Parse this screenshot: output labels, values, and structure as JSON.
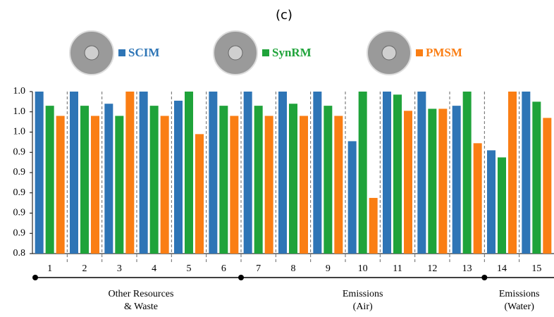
{
  "chart_data": {
    "type": "bar",
    "title": "(c)",
    "categories": [
      "1",
      "2",
      "3",
      "4",
      "5",
      "6",
      "7",
      "8",
      "9",
      "10",
      "11",
      "12",
      "13",
      "14",
      "15"
    ],
    "series": [
      {
        "name": "SCIM",
        "color": "#2e75b6",
        "values": [
          1.0,
          1.0,
          0.988,
          1.0,
          0.991,
          1.0,
          1.0,
          1.0,
          1.0,
          0.951,
          1.0,
          1.0,
          0.986,
          0.942,
          1.0
        ]
      },
      {
        "name": "SynRM",
        "color": "#1fa33a",
        "values": [
          0.986,
          0.986,
          0.976,
          0.986,
          1.0,
          0.986,
          0.986,
          0.988,
          0.986,
          1.0,
          0.997,
          0.983,
          1.0,
          0.935,
          0.99
        ]
      },
      {
        "name": "PMSM",
        "color": "#fa7e14",
        "values": [
          0.976,
          0.976,
          1.0,
          0.976,
          0.958,
          0.976,
          0.976,
          0.976,
          0.976,
          0.895,
          0.981,
          0.983,
          0.949,
          1.0,
          0.974
        ]
      }
    ],
    "ylim": [
      0.84,
      1.0
    ],
    "yticks": [
      {
        "value": 0.84,
        "label": "0.8"
      },
      {
        "value": 0.86,
        "label": "0.9"
      },
      {
        "value": 0.88,
        "label": "0.9"
      },
      {
        "value": 0.9,
        "label": "0.9"
      },
      {
        "value": 0.92,
        "label": "0.9"
      },
      {
        "value": 0.94,
        "label": "0.9"
      },
      {
        "value": 0.96,
        "label": "1.0"
      },
      {
        "value": 0.98,
        "label": "1.0"
      },
      {
        "value": 1.0,
        "label": "1.0"
      }
    ],
    "grid": false,
    "groups": [
      [
        "Other Resources",
        "& Waste"
      ],
      [
        "Emissions",
        "(Air)"
      ],
      [
        "Emissions",
        "(Water)"
      ]
    ]
  }
}
